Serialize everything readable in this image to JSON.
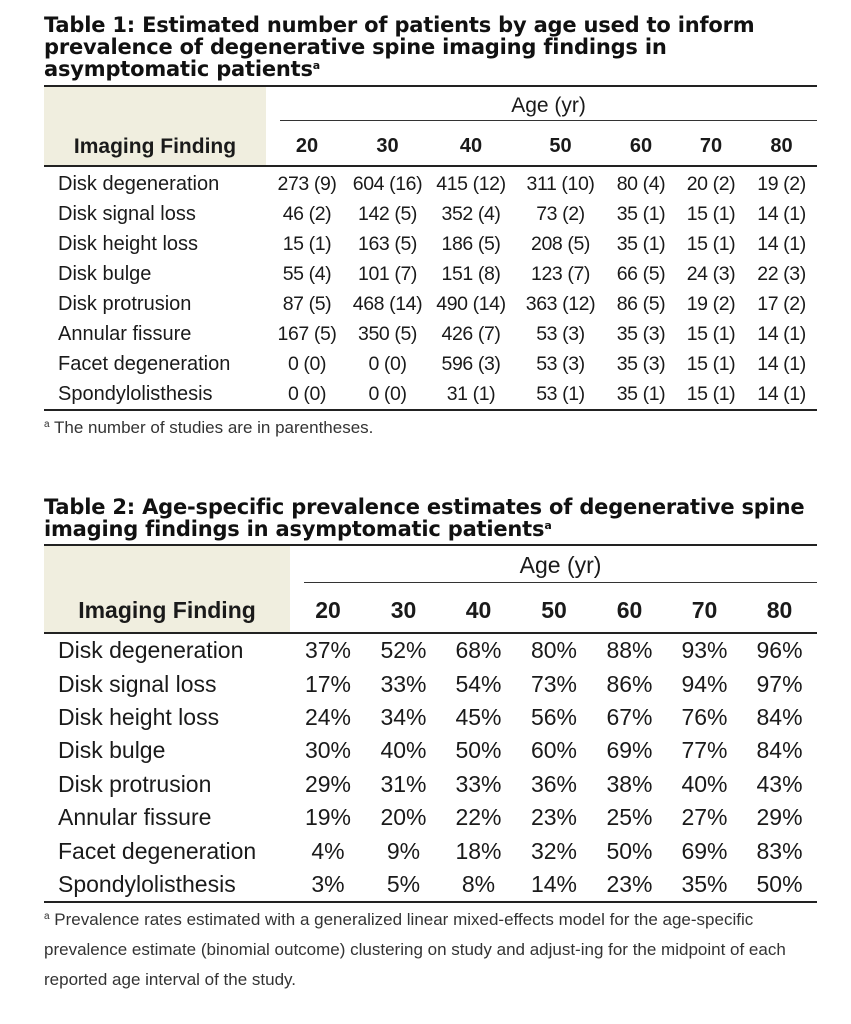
{
  "table1": {
    "title": "Table 1: Estimated number of patients by age used to inform prevalence of degenerative spine imaging findings in asymptomatic patients",
    "title_sup": "a",
    "finding_header": "Imaging Finding",
    "age_header": "Age (yr)",
    "ages": [
      "20",
      "30",
      "40",
      "50",
      "60",
      "70",
      "80"
    ],
    "rows": [
      {
        "finding": "Disk degeneration",
        "values": [
          "273 (9)",
          "604 (16)",
          "415 (12)",
          "311 (10)",
          "80 (4)",
          "20 (2)",
          "19 (2)"
        ]
      },
      {
        "finding": "Disk signal loss",
        "values": [
          "46 (2)",
          "142 (5)",
          "352 (4)",
          "73 (2)",
          "35 (1)",
          "15 (1)",
          "14 (1)"
        ]
      },
      {
        "finding": "Disk height loss",
        "values": [
          "15 (1)",
          "163 (5)",
          "186 (5)",
          "208 (5)",
          "35 (1)",
          "15 (1)",
          "14 (1)"
        ]
      },
      {
        "finding": "Disk bulge",
        "values": [
          "55 (4)",
          "101 (7)",
          "151 (8)",
          "123 (7)",
          "66 (5)",
          "24 (3)",
          "22 (3)"
        ]
      },
      {
        "finding": "Disk protrusion",
        "values": [
          "87 (5)",
          "468 (14)",
          "490 (14)",
          "363 (12)",
          "86 (5)",
          "19 (2)",
          "17 (2)"
        ]
      },
      {
        "finding": "Annular fissure",
        "values": [
          "167 (5)",
          "350 (5)",
          "426 (7)",
          "53 (3)",
          "35 (3)",
          "15 (1)",
          "14 (1)"
        ]
      },
      {
        "finding": "Facet degeneration",
        "values": [
          "0 (0)",
          "0 (0)",
          "596 (3)",
          "53 (3)",
          "35 (3)",
          "15 (1)",
          "14 (1)"
        ]
      },
      {
        "finding": "Spondylolisthesis",
        "values": [
          "0 (0)",
          "0 (0)",
          "31 (1)",
          "53 (1)",
          "35 (1)",
          "15 (1)",
          "14 (1)"
        ]
      }
    ],
    "footnote_mark": "a",
    "footnote": "The number of studies are in parentheses."
  },
  "table2": {
    "title": "Table 2: Age-specific prevalence estimates of degenerative spine imaging findings in asymptomatic patients",
    "title_sup": "a",
    "finding_header": "Imaging Finding",
    "age_header": "Age (yr)",
    "ages": [
      "20",
      "30",
      "40",
      "50",
      "60",
      "70",
      "80"
    ],
    "rows": [
      {
        "finding": "Disk degeneration",
        "values": [
          "37%",
          "52%",
          "68%",
          "80%",
          "88%",
          "93%",
          "96%"
        ]
      },
      {
        "finding": "Disk signal loss",
        "values": [
          "17%",
          "33%",
          "54%",
          "73%",
          "86%",
          "94%",
          "97%"
        ]
      },
      {
        "finding": "Disk height loss",
        "values": [
          "24%",
          "34%",
          "45%",
          "56%",
          "67%",
          "76%",
          "84%"
        ]
      },
      {
        "finding": "Disk bulge",
        "values": [
          "30%",
          "40%",
          "50%",
          "60%",
          "69%",
          "77%",
          "84%"
        ]
      },
      {
        "finding": "Disk protrusion",
        "values": [
          "29%",
          "31%",
          "33%",
          "36%",
          "38%",
          "40%",
          "43%"
        ]
      },
      {
        "finding": "Annular fissure",
        "values": [
          "19%",
          "20%",
          "22%",
          "23%",
          "25%",
          "27%",
          "29%"
        ]
      },
      {
        "finding": "Facet degeneration",
        "values": [
          "4%",
          "9%",
          "18%",
          "32%",
          "50%",
          "69%",
          "83%"
        ]
      },
      {
        "finding": "Spondylolisthesis",
        "values": [
          "3%",
          "5%",
          "8%",
          "14%",
          "23%",
          "35%",
          "50%"
        ]
      }
    ],
    "footnote_mark": "a",
    "footnote": "Prevalence rates estimated with a generalized linear mixed-effects model for the age-specific prevalence estimate (binomial outcome) clustering on study and adjust-ing for the midpoint of each reported age interval of the study."
  },
  "colors": {
    "header_shade": "#f0eedf",
    "rule": "#222222",
    "text": "#1a1a1a"
  }
}
